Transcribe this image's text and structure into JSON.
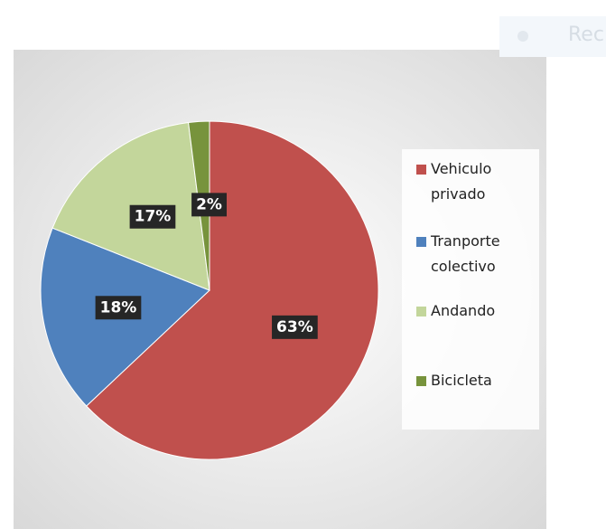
{
  "overlay": {
    "label": "Rec"
  },
  "chart_data": {
    "type": "pie",
    "categories": [
      "Vehiculo privado",
      "Tranporte colectivo",
      "Andando",
      "Bicicleta"
    ],
    "values": [
      63,
      18,
      17,
      2
    ],
    "value_labels": [
      "63%",
      "18%",
      "17%",
      "2%"
    ],
    "colors": [
      "#c0504d",
      "#4f81bd",
      "#c3d69b",
      "#77933c"
    ],
    "legend": "right"
  }
}
